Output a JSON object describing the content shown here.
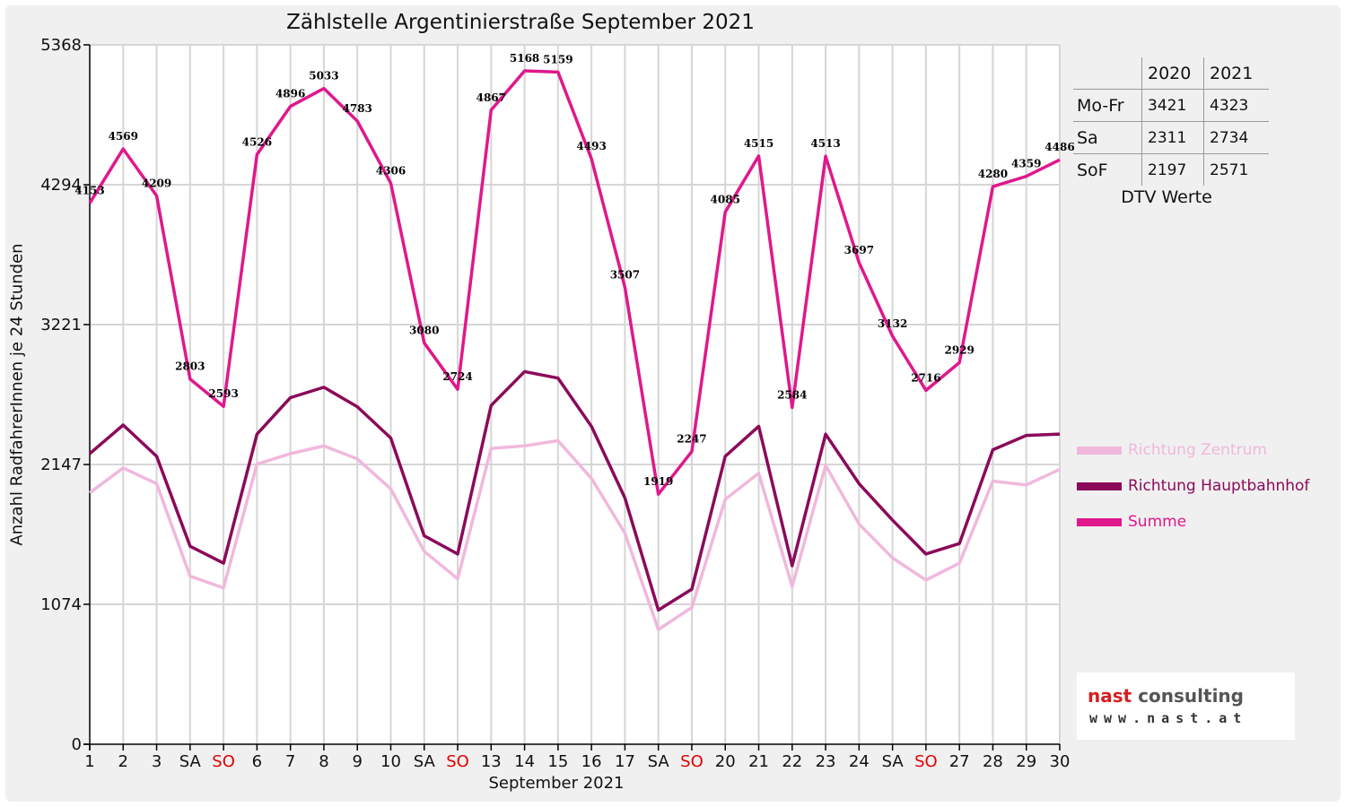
{
  "chart_data": {
    "type": "line",
    "title": "Zählstelle Argentinierstraße September 2021",
    "xlabel": "September 2021",
    "ylabel": "Anzahl RadfahrerInnen je 24 Stunden",
    "ylim": [
      0,
      5368
    ],
    "yticks": [
      0,
      1074,
      2147,
      3221,
      4294,
      5368
    ],
    "grid": true,
    "legend_position": "right",
    "categories": [
      "1",
      "2",
      "3",
      "SA",
      "SO",
      "6",
      "7",
      "8",
      "9",
      "10",
      "SA",
      "SO",
      "13",
      "14",
      "15",
      "16",
      "17",
      "SA",
      "SO",
      "20",
      "21",
      "22",
      "23",
      "24",
      "SA",
      "SO",
      "27",
      "28",
      "29",
      "30"
    ],
    "highlight_categories": [
      "SO"
    ],
    "highlight_color": "#e00000",
    "series": [
      {
        "name": "Richtung Zentrum",
        "color": "#f0b8dc",
        "values": [
          1930,
          2120,
          2000,
          1290,
          1200,
          2150,
          2230,
          2290,
          2190,
          1960,
          1480,
          1270,
          2270,
          2290,
          2330,
          2040,
          1620,
          880,
          1050,
          1880,
          2080,
          1210,
          2140,
          1690,
          1430,
          1260,
          1390,
          2020,
          1990,
          2110
        ]
      },
      {
        "name": "Richtung Hauptbahnhof",
        "color": "#8b0a5a",
        "values": [
          2230,
          2450,
          2210,
          1520,
          1390,
          2380,
          2660,
          2740,
          2590,
          2350,
          1600,
          1460,
          2600,
          2860,
          2810,
          2440,
          1890,
          1030,
          1190,
          2210,
          2440,
          1370,
          2380,
          2000,
          1720,
          1460,
          1540,
          2260,
          2370,
          2380
        ]
      },
      {
        "name": "Summe",
        "color": "#e0188c",
        "values": [
          4153,
          4569,
          4209,
          2803,
          2593,
          4526,
          4896,
          5033,
          4783,
          4306,
          3080,
          2724,
          4867,
          5168,
          5159,
          4493,
          3507,
          1919,
          2247,
          4085,
          4515,
          2584,
          4513,
          3697,
          3132,
          2716,
          2929,
          4280,
          4359,
          4486
        ],
        "data_labels": true
      }
    ]
  },
  "dtv_table": {
    "headers": [
      "",
      "2020",
      "2021"
    ],
    "rows": [
      {
        "label": "Mo-Fr",
        "v2020": "3421",
        "v2021": "4323"
      },
      {
        "label": "Sa",
        "v2020": "2311",
        "v2021": "2734"
      },
      {
        "label": "SoF",
        "v2020": "2197",
        "v2021": "2571"
      }
    ],
    "caption": "DTV Werte"
  },
  "logo": {
    "word1": "nast",
    "word2": "consulting",
    "word1_color": "#d42020",
    "word2_color": "#555555",
    "url": "www.nast.at"
  }
}
